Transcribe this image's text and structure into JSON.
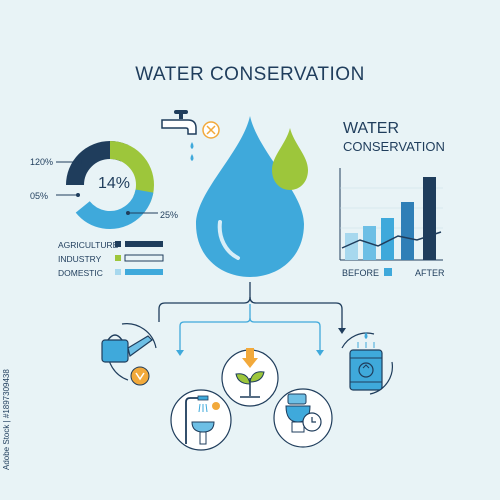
{
  "title": "WATER CONSERVATION",
  "right_title_line1": "WATER",
  "right_title_line2": "CONSERVATION",
  "donut": {
    "center": "14%",
    "labels": [
      "120%",
      "05%",
      "25%"
    ]
  },
  "legend": [
    {
      "label": "AGRICULTURE",
      "color": "#1f3d5c"
    },
    {
      "label": "INDUSTRY",
      "color": "#9dc63b"
    },
    {
      "label": "DOMESTIC",
      "color": "#3fa9db"
    }
  ],
  "bar_chart": {
    "before_label": "BEFORE",
    "after_label": "AFTER"
  },
  "side_id": "Adobe Stock | #1897309438",
  "colors": {
    "navy": "#1f3d5c",
    "blue": "#3fa9db",
    "green": "#9dc63b",
    "orange": "#f2a93b"
  }
}
